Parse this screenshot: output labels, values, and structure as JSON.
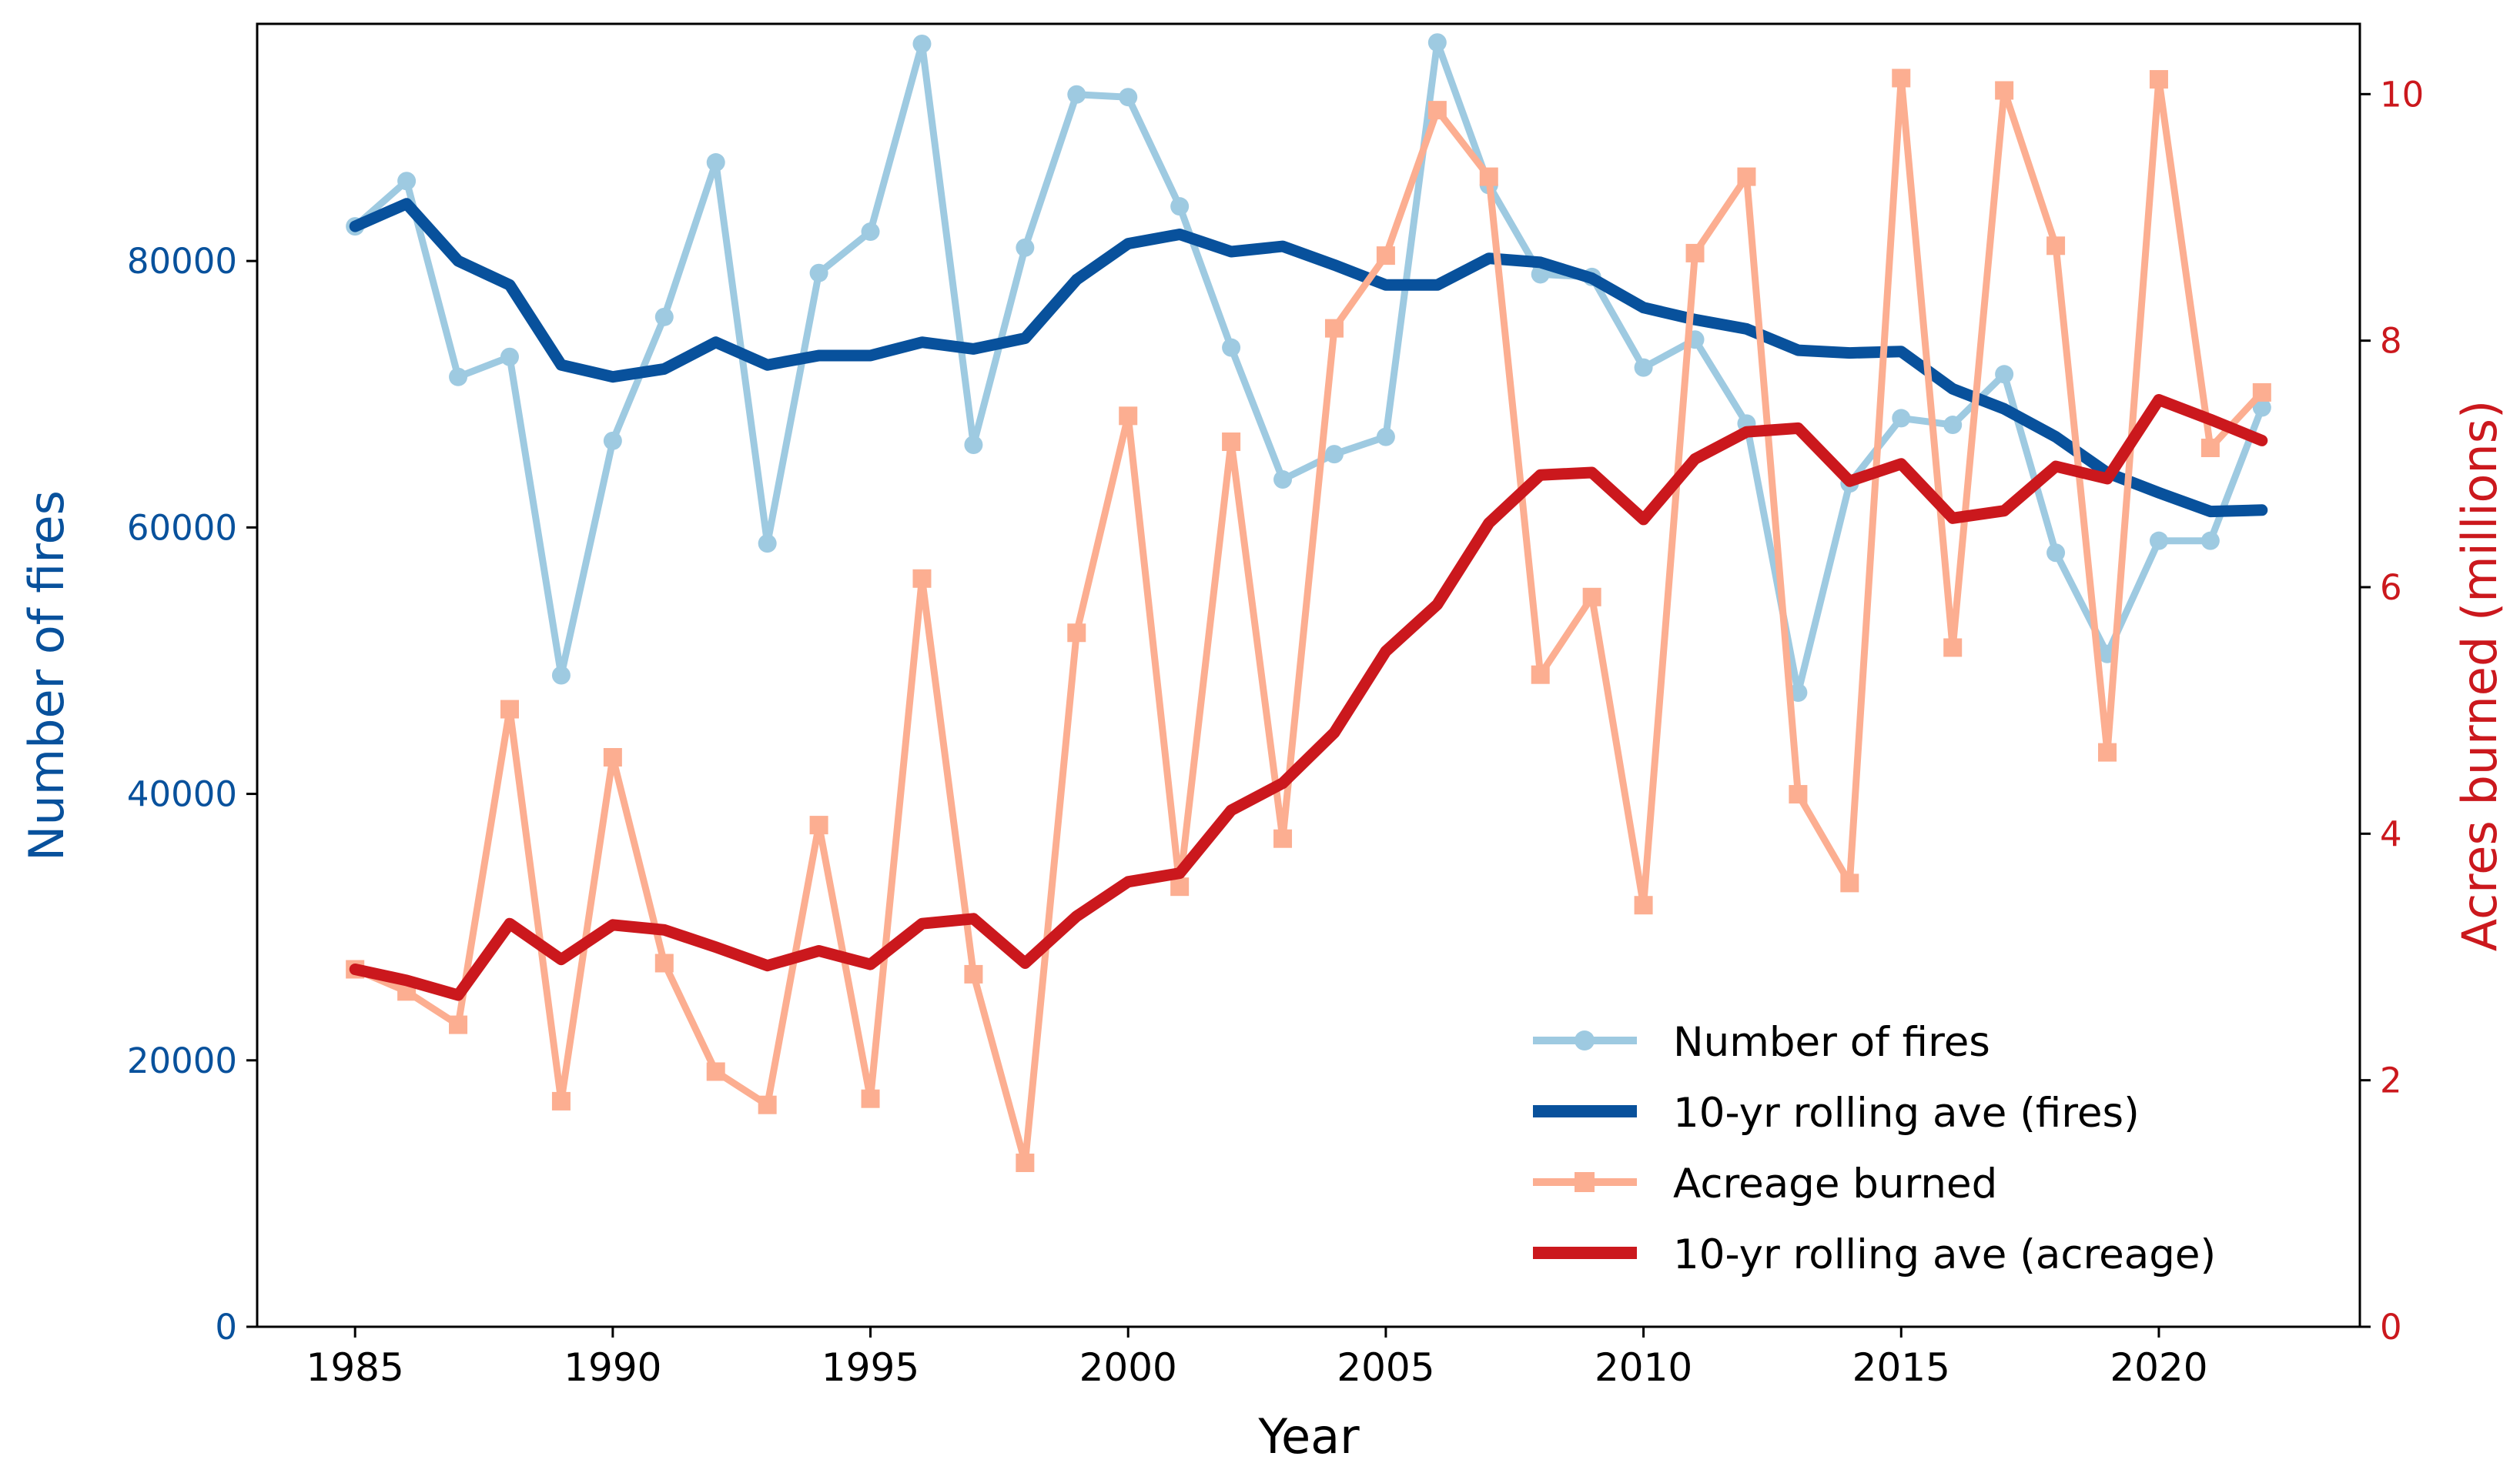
{
  "chart_data": {
    "type": "line",
    "title": "",
    "xlabel": "Year",
    "ylabel_left": "Number of fires",
    "ylabel_right": "Acres burned (millions)",
    "xlim": [
      1983.1,
      2023.9
    ],
    "ylim_left": [
      0,
      97800
    ],
    "ylim_right": [
      0,
      10.57
    ],
    "x_ticks": [
      "1985",
      "1990",
      "1995",
      "2000",
      "2005",
      "2010",
      "2015",
      "2020"
    ],
    "y_left_ticks": [
      "0",
      "20000",
      "40000",
      "60000",
      "80000"
    ],
    "y_right_ticks": [
      "0",
      "2",
      "4",
      "6",
      "8",
      "10"
    ],
    "legend_position": "lower-right",
    "x": [
      1985,
      1986,
      1987,
      1988,
      1989,
      1990,
      1991,
      1992,
      1993,
      1994,
      1995,
      1996,
      1997,
      1998,
      1999,
      2000,
      2001,
      2002,
      2003,
      2004,
      2005,
      2006,
      2007,
      2008,
      2009,
      2010,
      2011,
      2012,
      2013,
      2014,
      2015,
      2016,
      2017,
      2018,
      2019,
      2020,
      2021,
      2022
    ],
    "series": [
      {
        "name": "Number of fires",
        "axis": "left",
        "color": "#9ecae1",
        "marker": "circle",
        "values": [
          82600,
          86000,
          71300,
          72800,
          48900,
          66500,
          75800,
          87400,
          58800,
          79100,
          82200,
          96300,
          66200,
          81000,
          92500,
          92300,
          84100,
          73500,
          63600,
          65500,
          66800,
          96400,
          85700,
          79000,
          78800,
          72000,
          74100,
          67800,
          47600,
          63300,
          68200,
          67700,
          71500,
          58100,
          50500,
          59000,
          59000,
          69000
        ]
      },
      {
        "name": "10-yr rolling ave (fires)",
        "axis": "left",
        "color": "#08519c",
        "marker": "none",
        "values": [
          82600,
          84300,
          80000,
          78200,
          72200,
          71300,
          71900,
          73900,
          72200,
          72900,
          72900,
          73900,
          73400,
          74200,
          78600,
          81300,
          82000,
          80700,
          81100,
          79700,
          78200,
          78200,
          80200,
          79900,
          78700,
          76500,
          75600,
          74900,
          73300,
          73100,
          73200,
          70400,
          68900,
          66800,
          64100,
          62600,
          61200,
          61300
        ]
      },
      {
        "name": "Acreage burned",
        "axis": "right",
        "color": "#fcae91",
        "marker": "square",
        "values": [
          2.9,
          2.72,
          2.45,
          5.01,
          1.83,
          4.62,
          2.95,
          2.07,
          1.8,
          4.07,
          1.85,
          6.07,
          2.86,
          1.33,
          5.63,
          7.39,
          3.57,
          7.18,
          3.96,
          8.1,
          8.69,
          9.87,
          9.33,
          5.29,
          5.92,
          3.42,
          8.71,
          9.33,
          4.32,
          3.6,
          10.13,
          5.51,
          10.03,
          8.77,
          4.66,
          10.12,
          7.13,
          7.58
        ]
      },
      {
        "name": "10-yr rolling ave (acreage)",
        "axis": "right",
        "color": "#cb181d",
        "marker": "none",
        "values": [
          2.9,
          2.81,
          2.69,
          3.27,
          2.98,
          3.26,
          3.22,
          3.08,
          2.93,
          3.05,
          2.94,
          3.27,
          3.31,
          2.95,
          3.33,
          3.61,
          3.68,
          4.19,
          4.41,
          4.82,
          5.48,
          5.86,
          6.52,
          6.91,
          6.93,
          6.55,
          7.04,
          7.26,
          7.29,
          6.86,
          7.0,
          6.56,
          6.62,
          6.98,
          6.88,
          7.52,
          7.36,
          7.19
        ]
      }
    ]
  }
}
